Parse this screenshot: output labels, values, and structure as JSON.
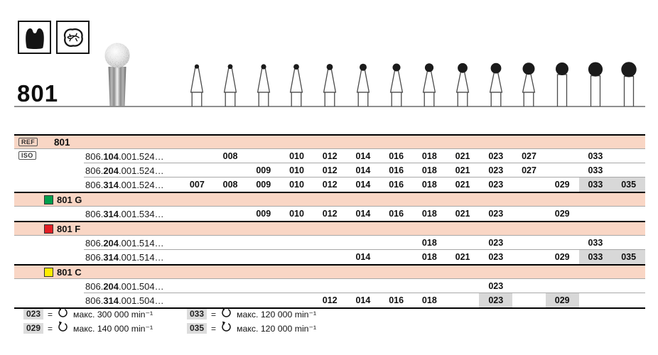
{
  "header": {
    "product_number": "801",
    "icons": [
      {
        "name": "crown-silhouette-icon"
      },
      {
        "name": "occlusal-surface-icon"
      }
    ]
  },
  "colors": {
    "section_row_bg": "#f9d6c5",
    "highlight_cell_bg": "#d8d8d8",
    "legend_chip_bg": "#dcdcdc",
    "green": "#009f4d",
    "red": "#e31e24",
    "yellow": "#ffec00"
  },
  "size_columns": [
    "007",
    "008",
    "009",
    "010",
    "012",
    "014",
    "016",
    "018",
    "021",
    "023",
    "027",
    "029",
    "033",
    "035"
  ],
  "table": {
    "ref_label": "REF",
    "iso_label": "ISO",
    "ref_value": "801",
    "sections": [
      {
        "name": "",
        "color": "",
        "rows": [
          {
            "iso_prefix": "806.",
            "iso_bold": "104",
            "iso_suffix": ".001.524…",
            "sizes": [
              "008",
              "010",
              "012",
              "014",
              "016",
              "018",
              "021",
              "023",
              "027",
              "033"
            ],
            "highlight": []
          },
          {
            "iso_prefix": "806.",
            "iso_bold": "204",
            "iso_suffix": ".001.524…",
            "sizes": [
              "009",
              "010",
              "012",
              "014",
              "016",
              "018",
              "021",
              "023",
              "027",
              "033"
            ],
            "highlight": []
          },
          {
            "iso_prefix": "806.",
            "iso_bold": "314",
            "iso_suffix": ".001.524…",
            "sizes": [
              "007",
              "008",
              "009",
              "010",
              "012",
              "014",
              "016",
              "018",
              "021",
              "023",
              "029",
              "033",
              "035"
            ],
            "highlight": [
              "033",
              "035"
            ]
          }
        ]
      },
      {
        "name": "801 G",
        "color": "#009f4d",
        "rows": [
          {
            "iso_prefix": "806.",
            "iso_bold": "314",
            "iso_suffix": ".001.534…",
            "sizes": [
              "009",
              "010",
              "012",
              "014",
              "016",
              "018",
              "021",
              "023",
              "029"
            ],
            "highlight": []
          }
        ]
      },
      {
        "name": "801 F",
        "color": "#e31e24",
        "rows": [
          {
            "iso_prefix": "806.",
            "iso_bold": "204",
            "iso_suffix": ".001.514…",
            "sizes": [
              "018",
              "023",
              "033"
            ],
            "highlight": []
          },
          {
            "iso_prefix": "806.",
            "iso_bold": "314",
            "iso_suffix": ".001.514…",
            "sizes": [
              "014",
              "018",
              "021",
              "023",
              "029",
              "033",
              "035"
            ],
            "highlight": [
              "033",
              "035"
            ]
          }
        ]
      },
      {
        "name": "801 C",
        "color": "#ffec00",
        "rows": [
          {
            "iso_prefix": "806.",
            "iso_bold": "204",
            "iso_suffix": ".001.504…",
            "sizes": [
              "023"
            ],
            "highlight": []
          },
          {
            "iso_prefix": "806.",
            "iso_bold": "314",
            "iso_suffix": ".001.504…",
            "sizes": [
              "012",
              "014",
              "016",
              "018",
              "023",
              "029"
            ],
            "highlight": [
              "023",
              "029"
            ]
          }
        ]
      }
    ]
  },
  "legend": {
    "eq": "=",
    "entries": [
      {
        "size": "023",
        "text": "макс. 300 000 min⁻¹"
      },
      {
        "size": "033",
        "text": "макс. 120 000 min⁻¹"
      },
      {
        "size": "029",
        "text": "макс. 140 000 min⁻¹"
      },
      {
        "size": "035",
        "text": "макс. 120 000 min⁻¹"
      }
    ]
  }
}
